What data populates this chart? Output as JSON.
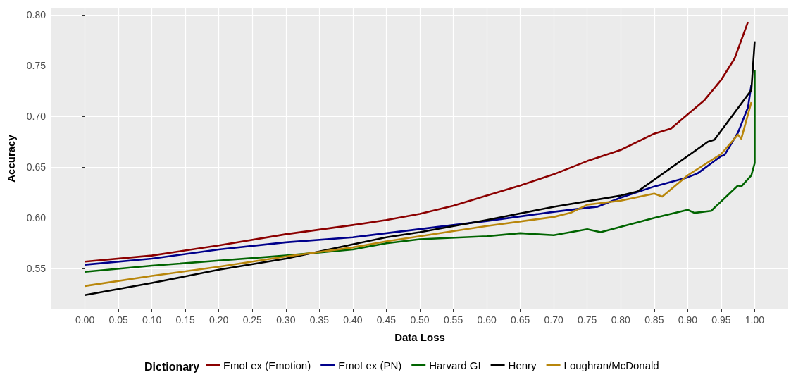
{
  "chart_data": {
    "type": "line",
    "xlabel": "Data Loss",
    "ylabel": "Accuracy",
    "legend_title": "Dictionary",
    "legend": "bottom",
    "grid": true,
    "marker": "none",
    "line_style": "solid",
    "xlim": [
      -0.05,
      1.05
    ],
    "ylim": [
      0.51,
      0.807
    ],
    "xticks": [
      {
        "value": 0,
        "label": "0.00"
      },
      {
        "value": 0.05,
        "label": "0.05"
      },
      {
        "value": 0.1,
        "label": "0.10"
      },
      {
        "value": 0.15,
        "label": "0.15"
      },
      {
        "value": 0.2,
        "label": "0.20"
      },
      {
        "value": 0.25,
        "label": "0.25"
      },
      {
        "value": 0.3,
        "label": "0.30"
      },
      {
        "value": 0.35,
        "label": "0.35"
      },
      {
        "value": 0.4,
        "label": "0.40"
      },
      {
        "value": 0.45,
        "label": "0.45"
      },
      {
        "value": 0.5,
        "label": "0.50"
      },
      {
        "value": 0.55,
        "label": "0.55"
      },
      {
        "value": 0.6,
        "label": "0.60"
      },
      {
        "value": 0.65,
        "label": "0.65"
      },
      {
        "value": 0.7,
        "label": "0.70"
      },
      {
        "value": 0.75,
        "label": "0.75"
      },
      {
        "value": 0.8,
        "label": "0.80"
      },
      {
        "value": 0.85,
        "label": "0.85"
      },
      {
        "value": 0.9,
        "label": "0.90"
      },
      {
        "value": 0.95,
        "label": "0.95"
      },
      {
        "value": 1,
        "label": "1.00"
      }
    ],
    "yticks": [
      {
        "value": 0.55,
        "label": "0.55"
      },
      {
        "value": 0.6,
        "label": "0.60"
      },
      {
        "value": 0.65,
        "label": "0.65"
      },
      {
        "value": 0.7,
        "label": "0.70"
      },
      {
        "value": 0.75,
        "label": "0.75"
      },
      {
        "value": 0.8,
        "label": "0.80"
      }
    ],
    "series": [
      {
        "name": "EmoLex (Emotion)",
        "color": "#8b0000",
        "x": [
          0,
          0.1,
          0.2,
          0.3,
          0.4,
          0.45,
          0.5,
          0.55,
          0.6,
          0.65,
          0.7,
          0.75,
          0.8,
          0.85,
          0.875,
          0.9,
          0.925,
          0.95,
          0.97,
          0.99
        ],
        "values": [
          0.557,
          0.563,
          0.573,
          0.584,
          0.593,
          0.598,
          0.604,
          0.612,
          0.622,
          0.632,
          0.643,
          0.656,
          0.667,
          0.683,
          0.688,
          0.702,
          0.716,
          0.736,
          0.757,
          0.793
        ]
      },
      {
        "name": "EmoLex (PN)",
        "color": "#00008b",
        "x": [
          0,
          0.1,
          0.2,
          0.3,
          0.4,
          0.5,
          0.6,
          0.7,
          0.75,
          0.765,
          0.8,
          0.85,
          0.9,
          0.915,
          0.95,
          0.955,
          0.975,
          0.99,
          0.995
        ],
        "values": [
          0.554,
          0.56,
          0.569,
          0.576,
          0.581,
          0.589,
          0.597,
          0.606,
          0.61,
          0.611,
          0.62,
          0.631,
          0.64,
          0.644,
          0.661,
          0.662,
          0.684,
          0.709,
          0.731
        ]
      },
      {
        "name": "Harvard GI",
        "color": "#006400",
        "x": [
          0,
          0.1,
          0.2,
          0.3,
          0.4,
          0.45,
          0.5,
          0.6,
          0.65,
          0.7,
          0.75,
          0.77,
          0.85,
          0.9,
          0.91,
          0.935,
          0.975,
          0.98,
          0.995,
          1,
          1
        ],
        "values": [
          0.547,
          0.553,
          0.558,
          0.563,
          0.569,
          0.575,
          0.579,
          0.582,
          0.585,
          0.583,
          0.589,
          0.586,
          0.6,
          0.608,
          0.605,
          0.607,
          0.632,
          0.631,
          0.642,
          0.654,
          0.746
        ]
      },
      {
        "name": "Henry",
        "color": "#000000",
        "x": [
          0,
          0.1,
          0.2,
          0.3,
          0.4,
          0.45,
          0.5,
          0.6,
          0.7,
          0.8,
          0.825,
          0.93,
          0.94,
          0.995,
          1
        ],
        "values": [
          0.524,
          0.536,
          0.549,
          0.56,
          0.574,
          0.581,
          0.586,
          0.598,
          0.611,
          0.622,
          0.626,
          0.675,
          0.677,
          0.726,
          0.774
        ]
      },
      {
        "name": "Loughran/McDonald",
        "color": "#b8860b",
        "x": [
          0,
          0.1,
          0.2,
          0.3,
          0.4,
          0.45,
          0.5,
          0.6,
          0.7,
          0.725,
          0.75,
          0.8,
          0.85,
          0.862,
          0.9,
          0.95,
          0.975,
          0.98,
          0.995
        ],
        "values": [
          0.533,
          0.543,
          0.552,
          0.562,
          0.571,
          0.577,
          0.582,
          0.592,
          0.601,
          0.605,
          0.613,
          0.617,
          0.624,
          0.621,
          0.642,
          0.663,
          0.682,
          0.678,
          0.714
        ]
      }
    ]
  }
}
